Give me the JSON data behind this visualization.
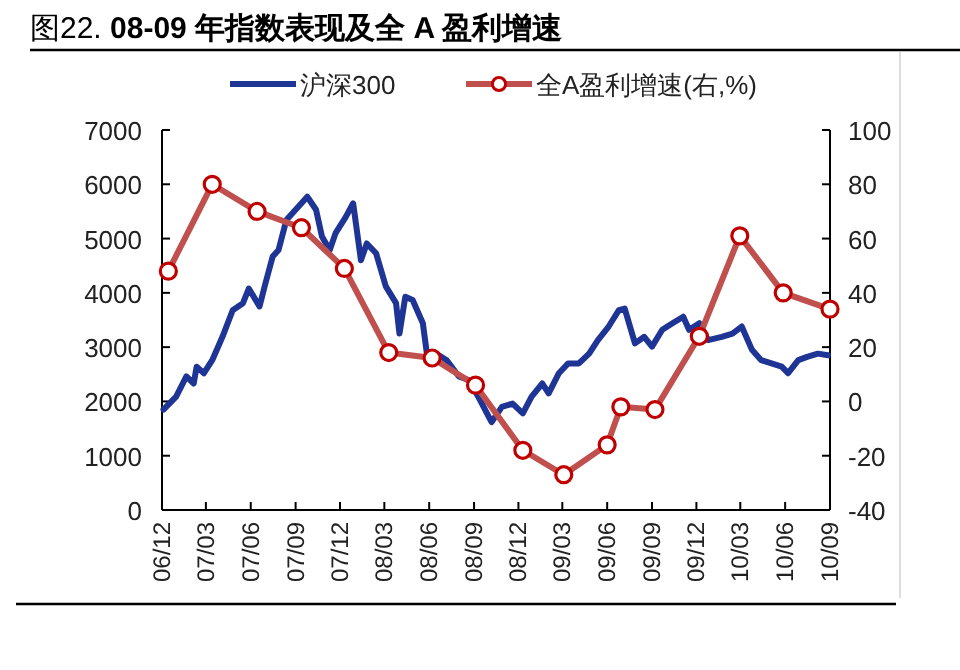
{
  "chart_data": {
    "type": "line",
    "title": "图22. **08-09 年指数表现及全 A 盈利增速**",
    "legend": "top",
    "xlim": [
      "2006-12-01",
      "2010-09-01"
    ],
    "xticks": [
      {
        "value": "2006-12-01",
        "label": "06/12"
      },
      {
        "value": "2007-03-01",
        "label": "07/03"
      },
      {
        "value": "2007-06-01",
        "label": "07/06"
      },
      {
        "value": "2007-09-01",
        "label": "07/09"
      },
      {
        "value": "2007-12-01",
        "label": "07/12"
      },
      {
        "value": "2008-03-01",
        "label": "08/03"
      },
      {
        "value": "2008-06-01",
        "label": "08/06"
      },
      {
        "value": "2008-09-01",
        "label": "08/09"
      },
      {
        "value": "2008-12-01",
        "label": "08/12"
      },
      {
        "value": "2009-03-01",
        "label": "09/03"
      },
      {
        "value": "2009-06-01",
        "label": "09/06"
      },
      {
        "value": "2009-09-01",
        "label": "09/09"
      },
      {
        "value": "2009-12-01",
        "label": "09/12"
      },
      {
        "value": "2010-03-01",
        "label": "10/03"
      },
      {
        "value": "2010-06-01",
        "label": "10/06"
      },
      {
        "value": "2010-09-01",
        "label": "10/09"
      }
    ],
    "ylim": [
      0,
      7000
    ],
    "yticks": [
      0,
      1000,
      2000,
      3000,
      4000,
      5000,
      6000,
      7000
    ],
    "y2lim": [
      -40,
      100
    ],
    "y2ticks": [
      -40,
      -20,
      0,
      20,
      40,
      60,
      80,
      100
    ],
    "series": [
      {
        "name": "沪深300",
        "color": "#1f3596",
        "marker": "none",
        "x": [
          "2006-12-04",
          "2006-12-30",
          "2007-01-20",
          "2007-02-04",
          "2007-02-10",
          "2007-02-25",
          "2007-03-14",
          "2007-04-04",
          "2007-04-25",
          "2007-05-16",
          "2007-05-28",
          "2007-06-19",
          "2007-07-01",
          "2007-07-16",
          "2007-07-28",
          "2007-08-13",
          "2007-09-01",
          "2007-09-25",
          "2007-10-13",
          "2007-10-25",
          "2007-11-10",
          "2007-11-22",
          "2007-12-13",
          "2007-12-28",
          "2008-01-13",
          "2008-01-25",
          "2008-02-13",
          "2008-03-04",
          "2008-03-25",
          "2008-04-01",
          "2008-04-13",
          "2008-04-28",
          "2008-05-19",
          "2008-05-28",
          "2008-06-16",
          "2008-07-07",
          "2008-08-01",
          "2008-08-22",
          "2008-09-13",
          "2008-10-01",
          "2008-10-07",
          "2008-10-28",
          "2008-11-19",
          "2008-12-10",
          "2008-12-28",
          "2009-01-19",
          "2009-02-01",
          "2009-02-22",
          "2009-03-13",
          "2009-04-04",
          "2009-04-25",
          "2009-05-13",
          "2009-06-04",
          "2009-06-25",
          "2009-07-07",
          "2009-07-28",
          "2009-08-16",
          "2009-09-01",
          "2009-09-22",
          "2009-10-13",
          "2009-11-04",
          "2009-11-16",
          "2009-12-07",
          "2009-12-25",
          "2010-01-22",
          "2010-02-13",
          "2010-03-04",
          "2010-03-25",
          "2010-04-13",
          "2010-05-04",
          "2010-05-25",
          "2010-06-07",
          "2010-06-28",
          "2010-07-16",
          "2010-08-07",
          "2010-08-28"
        ],
        "values": [
          1850,
          2090,
          2460,
          2330,
          2640,
          2520,
          2760,
          3190,
          3680,
          3810,
          4080,
          3750,
          4170,
          4670,
          4790,
          5340,
          5530,
          5770,
          5530,
          5040,
          4790,
          5100,
          5400,
          5650,
          4600,
          4910,
          4730,
          4120,
          3810,
          3250,
          3930,
          3870,
          3440,
          2830,
          2880,
          2760,
          2460,
          2390,
          2030,
          1720,
          1620,
          1900,
          1960,
          1780,
          2090,
          2330,
          2150,
          2520,
          2700,
          2700,
          2880,
          3130,
          3380,
          3680,
          3710,
          3070,
          3190,
          3010,
          3320,
          3440,
          3560,
          3320,
          3440,
          3130,
          3190,
          3250,
          3380,
          2950,
          2760,
          2700,
          2640,
          2520,
          2760,
          2820,
          2880,
          2850
        ]
      },
      {
        "name": "全A盈利增速(右,%)",
        "color": "#c0504d",
        "axis": "y2",
        "marker": "circle",
        "x": [
          "2006-12-14",
          "2007-03-14",
          "2007-06-14",
          "2007-09-13",
          "2007-12-10",
          "2008-03-10",
          "2008-06-07",
          "2008-09-04",
          "2008-12-10",
          "2009-03-04",
          "2009-06-01",
          "2009-06-29",
          "2009-09-07",
          "2009-12-07",
          "2010-02-28",
          "2010-05-28",
          "2010-09-01"
        ],
        "values": [
          48,
          80,
          70,
          64,
          49,
          18,
          16,
          6,
          -18,
          -27,
          -16,
          -2,
          -3,
          24,
          61,
          40,
          34
        ]
      }
    ]
  }
}
